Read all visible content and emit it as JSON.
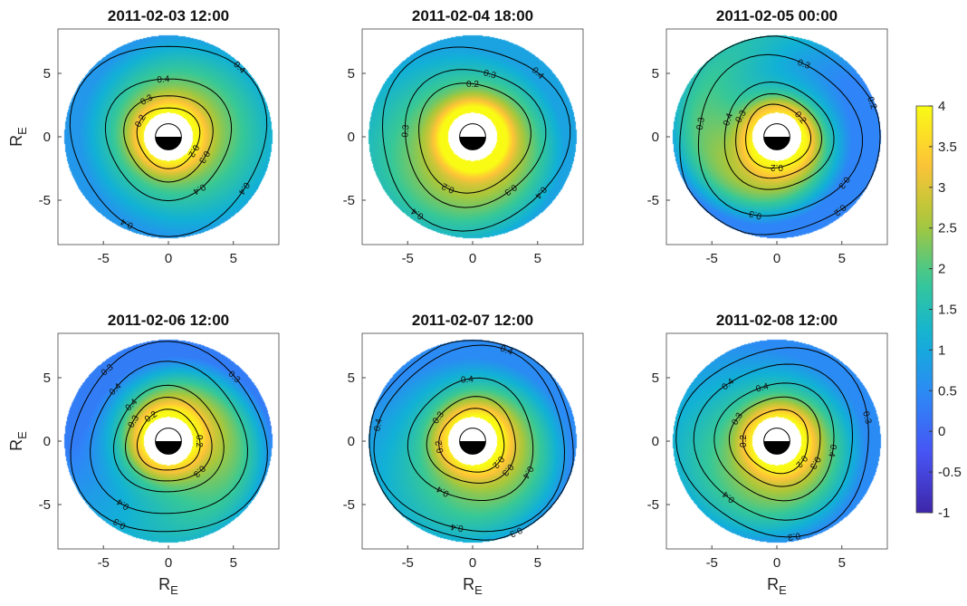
{
  "chart_data": {
    "type": "heatmap",
    "colormap": "parula",
    "colors": {
      "parula_low": "#3e26a8",
      "parula_mid": "#13beb8",
      "parula_high": "#f9fb0e",
      "frame": "#444444",
      "contour": "#000000"
    },
    "colorbar": {
      "limits": [
        -1,
        4
      ],
      "ticks": [
        4,
        3.5,
        3,
        2.5,
        2,
        1.5,
        1,
        0.5,
        0,
        -0.5,
        -1
      ],
      "placement": "right"
    },
    "axes": {
      "xlim": [
        -8.5,
        8.5
      ],
      "ylim": [
        -8.5,
        8.5
      ],
      "xticks": [
        -5,
        0,
        5
      ],
      "yticks": [
        5,
        0,
        -5
      ],
      "xlabel": {
        "main": "R",
        "sub": "E"
      },
      "ylabel": {
        "main": "R",
        "sub": "E"
      }
    },
    "panels": [
      {
        "title": "2011-02-03 12:00",
        "field": {
          "inner": 3.1,
          "outer": 0.7,
          "core": 4.0,
          "swirl": 0.1,
          "tilt": {
            "angle_deg": 220,
            "amount": 0.7
          }
        },
        "contours": [
          {
            "level": "0.2",
            "r": 2.4,
            "labels_deg": [
              150,
              330
            ]
          },
          {
            "level": "0.3",
            "r": 3.4,
            "labels_deg": [
              120,
              330
            ]
          },
          {
            "level": "0.4",
            "r": 4.8,
            "labels_deg": [
              95,
              300
            ]
          },
          {
            "level": "0.4",
            "r": 7.5,
            "labels_deg": [
              45,
              245,
              325
            ]
          }
        ]
      },
      {
        "title": "2011-02-04 18:00",
        "field": {
          "inner": 3.4,
          "outer": 0.9,
          "core": 4.6,
          "swirl": 0.25,
          "tilt": {
            "angle_deg": 120,
            "amount": 0.9
          }
        },
        "contours": [
          {
            "level": "0.2",
            "r": 4.3,
            "labels_deg": [
              90,
              245
            ]
          },
          {
            "level": "0.3",
            "r": 5.4,
            "labels_deg": [
              75,
              175,
              305
            ]
          },
          {
            "level": "0.4",
            "r": 7.2,
            "labels_deg": [
              45,
              235,
              320
            ]
          }
        ]
      },
      {
        "title": "2011-02-05 00:00",
        "field": {
          "inner": 3.0,
          "outer": 0.4,
          "core": 4.0,
          "swirl": 0.5,
          "tilt": {
            "angle_deg": 115,
            "amount": 1.6
          }
        },
        "contours": [
          {
            "level": "0.2",
            "r": 2.5,
            "labels_deg": [
              40,
              270
            ]
          },
          {
            "level": "0.3",
            "r": 3.3,
            "labels_deg": [
              150
            ]
          },
          {
            "level": "0.4",
            "r": 4.2,
            "labels_deg": [
              160
            ]
          },
          {
            "level": "0.3",
            "r": 6.3,
            "labels_deg": [
              70,
              170,
              325,
              255
            ]
          },
          {
            "level": "0.2",
            "r": 7.8,
            "labels_deg": [
              20,
              310
            ]
          }
        ]
      },
      {
        "title": "2011-02-06 12:00",
        "field": {
          "inner": 3.2,
          "outer": 0.3,
          "core": 4.0,
          "swirl": 0.45,
          "tilt": {
            "angle_deg": 250,
            "amount": 1.2
          }
        },
        "contours": [
          {
            "level": "0.2",
            "r": 2.4,
            "labels_deg": [
              0,
              125
            ]
          },
          {
            "level": "0.3",
            "r": 3.3,
            "labels_deg": [
              150,
              315
            ]
          },
          {
            "level": "0.4",
            "r": 4.2,
            "labels_deg": [
              135
            ]
          },
          {
            "level": "0.4",
            "r": 6.0,
            "labels_deg": [
              135,
              235
            ]
          },
          {
            "level": "0.3",
            "r": 7.5,
            "labels_deg": [
              45,
              130,
              240
            ]
          }
        ]
      },
      {
        "title": "2011-02-07 12:00",
        "field": {
          "inner": 3.2,
          "outer": 0.5,
          "core": 4.0,
          "swirl": 0.35,
          "tilt": {
            "angle_deg": 180,
            "amount": 0.9
          }
        },
        "contours": [
          {
            "level": "0.2",
            "r": 2.5,
            "labels_deg": [
              190,
              320
            ]
          },
          {
            "level": "0.3",
            "r": 3.4,
            "labels_deg": [
              145,
              320
            ]
          },
          {
            "level": "0.4",
            "r": 4.8,
            "labels_deg": [
              95,
              240,
              330
            ]
          },
          {
            "level": "0.4",
            "r": 7.3,
            "labels_deg": [
              70,
              170,
              260
            ]
          },
          {
            "level": "0.3",
            "r": 8.0,
            "labels_deg": [
              295
            ]
          }
        ]
      },
      {
        "title": "2011-02-08 12:00",
        "field": {
          "inner": 3.2,
          "outer": 0.5,
          "core": 4.0,
          "swirl": 0.35,
          "tilt": {
            "angle_deg": 135,
            "amount": 0.9
          }
        },
        "contours": [
          {
            "level": "0.2",
            "r": 2.5,
            "labels_deg": [
              180,
              320
            ]
          },
          {
            "level": "0.3",
            "r": 3.5,
            "labels_deg": [
              150,
              330
            ]
          },
          {
            "level": "0.4",
            "r": 4.6,
            "labels_deg": [
              105,
              350
            ]
          },
          {
            "level": "0.4",
            "r": 6.1,
            "labels_deg": [
              130,
              230
            ]
          },
          {
            "level": "0.3",
            "r": 7.4,
            "labels_deg": [
              15,
              280
            ]
          }
        ]
      }
    ]
  }
}
